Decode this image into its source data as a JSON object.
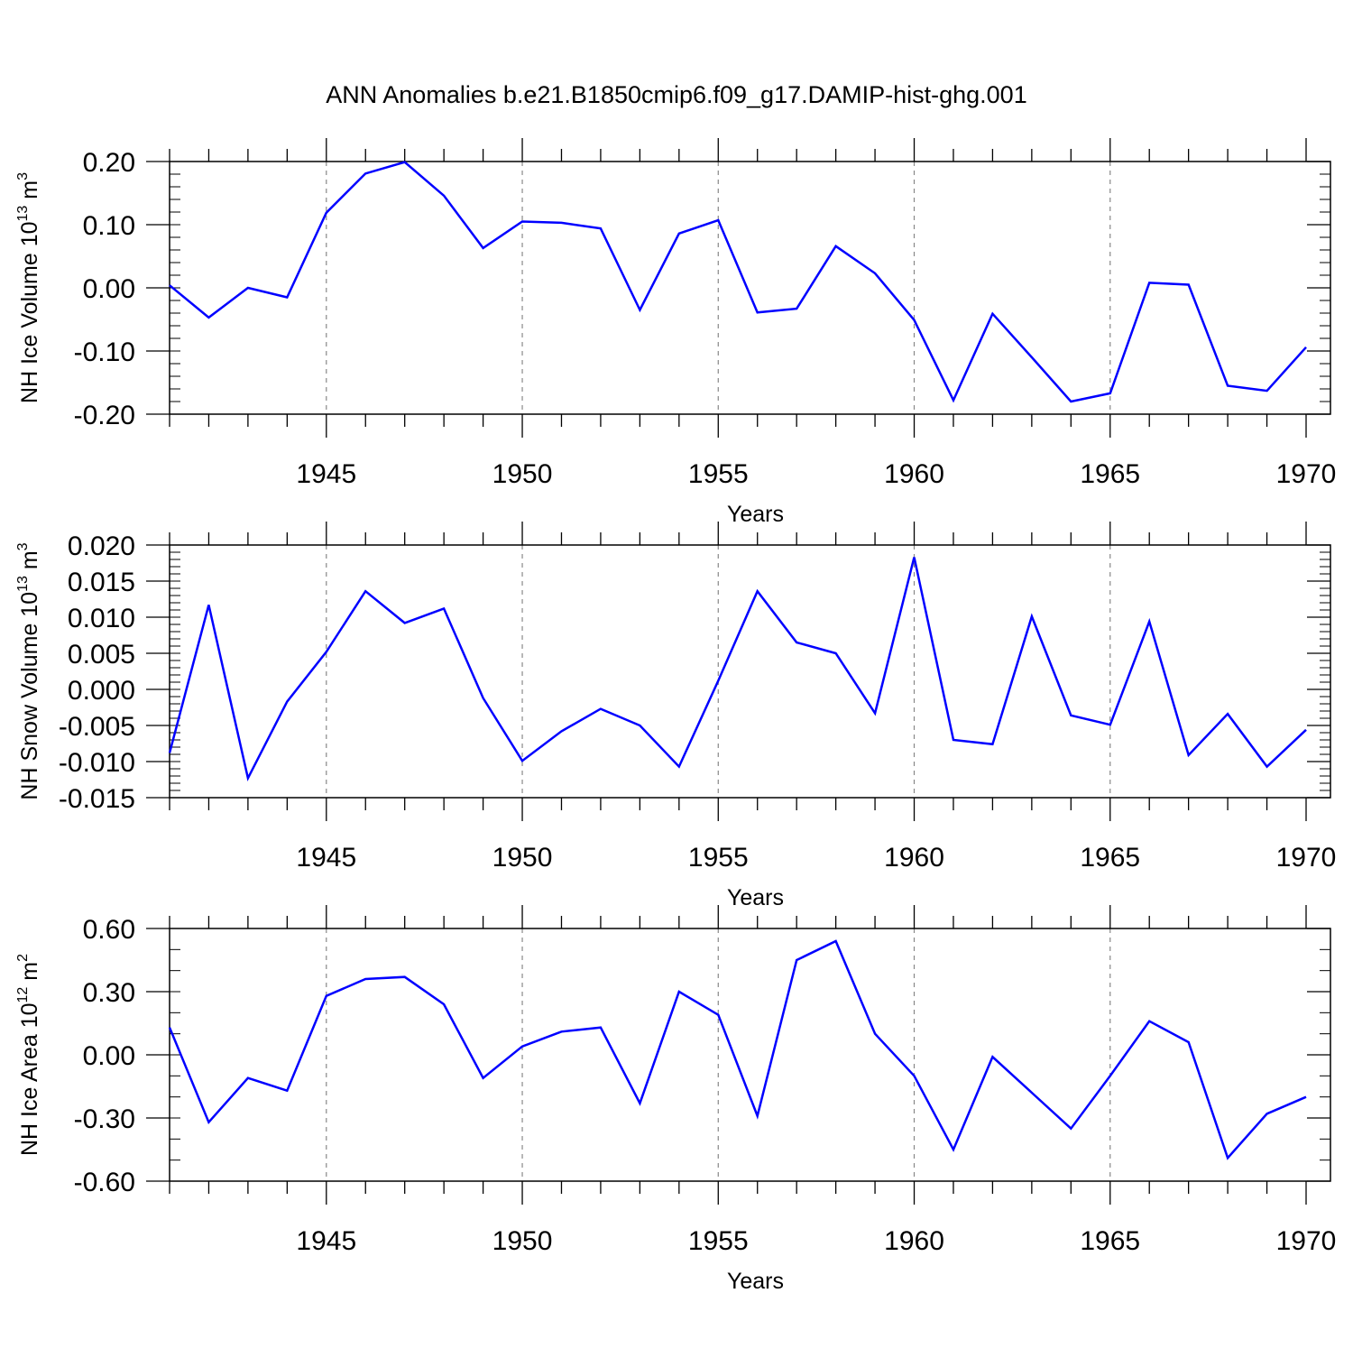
{
  "title": "ANN Anomalies b.e21.B1850cmip6.f09_g17.DAMIP-hist-ghg.001",
  "colors": {
    "line": "#0000ff",
    "axis": "#000000",
    "grid": "#888888"
  },
  "chart_data": [
    {
      "type": "line",
      "ylabel": "NH Ice Volume 10",
      "ylabel_exp": "13",
      "ylabel_unit": " m",
      "ylabel_unit_exp": "3",
      "xlabel": "Years",
      "xlim": [
        1941,
        1970
      ],
      "ylim": [
        -0.2,
        0.2
      ],
      "xticks": [
        1945,
        1950,
        1955,
        1960,
        1965,
        1970
      ],
      "yticks": [
        0.2,
        0.1,
        0.0,
        -0.1,
        -0.2
      ],
      "yticklabels": [
        "0.20",
        "0.10",
        "0.00",
        "-0.10",
        "-0.20"
      ],
      "yminor_step": 0.02,
      "x": [
        1941,
        1942,
        1943,
        1944,
        1945,
        1946,
        1947,
        1948,
        1949,
        1950,
        1951,
        1952,
        1953,
        1954,
        1955,
        1956,
        1957,
        1958,
        1959,
        1960,
        1961,
        1962,
        1963,
        1964,
        1965,
        1966,
        1967,
        1968,
        1969,
        1970
      ],
      "values": [
        0.004,
        -0.047,
        0.0,
        -0.015,
        0.119,
        0.181,
        0.199,
        0.146,
        0.063,
        0.105,
        0.103,
        0.094,
        -0.035,
        0.086,
        0.107,
        -0.039,
        -0.033,
        0.066,
        0.023,
        -0.051,
        -0.178,
        -0.041,
        -0.11,
        -0.18,
        -0.167,
        0.008,
        0.005,
        -0.155,
        -0.163,
        -0.094
      ]
    },
    {
      "type": "line",
      "ylabel": "NH Snow Volume 10",
      "ylabel_exp": "13",
      "ylabel_unit": " m",
      "ylabel_unit_exp": "3",
      "xlabel": "Years",
      "xlim": [
        1941,
        1970
      ],
      "ylim": [
        -0.015,
        0.02
      ],
      "xticks": [
        1945,
        1950,
        1955,
        1960,
        1965,
        1970
      ],
      "yticks": [
        0.02,
        0.015,
        0.01,
        0.005,
        0.0,
        -0.005,
        -0.01,
        -0.015
      ],
      "yticklabels": [
        "0.020",
        "0.015",
        "0.010",
        "0.005",
        "0.000",
        "-0.005",
        "-0.010",
        "-0.015"
      ],
      "yminor_step": 0.001,
      "x": [
        1941,
        1942,
        1943,
        1944,
        1945,
        1946,
        1947,
        1948,
        1949,
        1950,
        1951,
        1952,
        1953,
        1954,
        1955,
        1956,
        1957,
        1958,
        1959,
        1960,
        1961,
        1962,
        1963,
        1964,
        1965,
        1966,
        1967,
        1968,
        1969,
        1970
      ],
      "values": [
        -0.0088,
        0.0117,
        -0.0123,
        -0.0017,
        0.0052,
        0.0136,
        0.0092,
        0.0112,
        -0.0012,
        -0.0099,
        -0.0058,
        -0.0027,
        -0.005,
        -0.0107,
        0.0012,
        0.0136,
        0.0065,
        0.005,
        -0.0033,
        0.0183,
        -0.007,
        -0.0076,
        0.0101,
        -0.0036,
        -0.0049,
        0.0094,
        -0.0091,
        -0.0034,
        -0.0107,
        -0.0056
      ]
    },
    {
      "type": "line",
      "ylabel": "NH Ice Area 10",
      "ylabel_exp": "12",
      "ylabel_unit": " m",
      "ylabel_unit_exp": "2",
      "xlabel": "Years",
      "xlim": [
        1941,
        1970
      ],
      "ylim": [
        -0.6,
        0.6
      ],
      "xticks": [
        1945,
        1950,
        1955,
        1960,
        1965,
        1970
      ],
      "yticks": [
        0.6,
        0.3,
        0.0,
        -0.3,
        -0.6
      ],
      "yticklabels": [
        "0.60",
        "0.30",
        "0.00",
        "-0.30",
        "-0.60"
      ],
      "yminor_step": 0.1,
      "x": [
        1941,
        1942,
        1943,
        1944,
        1945,
        1946,
        1947,
        1948,
        1949,
        1950,
        1951,
        1952,
        1953,
        1954,
        1955,
        1956,
        1957,
        1958,
        1959,
        1960,
        1961,
        1962,
        1963,
        1964,
        1965,
        1966,
        1967,
        1968,
        1969,
        1970
      ],
      "values": [
        0.13,
        -0.32,
        -0.11,
        -0.17,
        0.28,
        0.36,
        0.37,
        0.24,
        -0.11,
        0.04,
        0.11,
        0.13,
        -0.23,
        0.3,
        0.19,
        -0.29,
        0.45,
        0.54,
        0.1,
        -0.1,
        -0.45,
        -0.01,
        -0.18,
        -0.35,
        -0.1,
        0.16,
        0.06,
        -0.49,
        -0.28,
        -0.2
      ]
    }
  ]
}
